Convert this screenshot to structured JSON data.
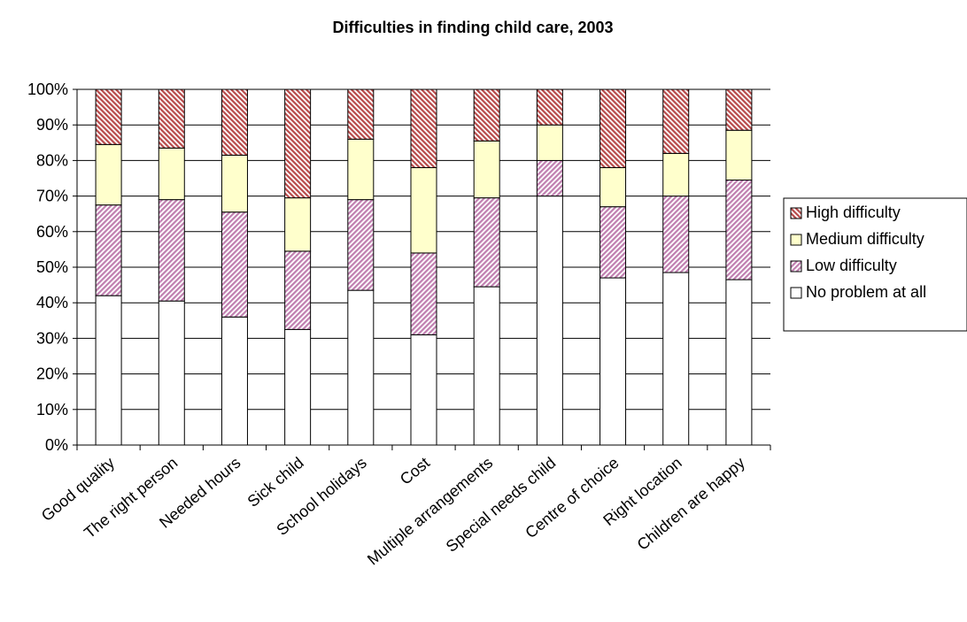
{
  "chart_data": {
    "type": "bar",
    "stacked": true,
    "percent": true,
    "title": "Difficulties in finding child care, 2003",
    "xlabel": "",
    "ylabel": "",
    "ylim": [
      0,
      100
    ],
    "yticks": [
      "0%",
      "10%",
      "20%",
      "30%",
      "40%",
      "50%",
      "60%",
      "70%",
      "80%",
      "90%",
      "100%"
    ],
    "grid": true,
    "legend_position": "right",
    "categories": [
      "Good quality",
      "The right person",
      "Needed hours",
      "Sick child",
      "School holidays",
      "Cost",
      "Multiple arrangements",
      "Special needs child",
      "Centre of choice",
      "Right location",
      "Children are happy"
    ],
    "series": [
      {
        "name": "No problem at all",
        "values": [
          42,
          40.5,
          36,
          32.5,
          43.5,
          31,
          44.5,
          70,
          47,
          48.5,
          46.5
        ],
        "color": "#ffffff"
      },
      {
        "name": "Low difficulty",
        "values": [
          25.5,
          28.5,
          29.5,
          22,
          25.5,
          23,
          25,
          10,
          20,
          21.5,
          28
        ],
        "color": "#cc99cc"
      },
      {
        "name": "Medium difficulty",
        "values": [
          17,
          14.5,
          16,
          15,
          17,
          24,
          16,
          10,
          11,
          12,
          14
        ],
        "color": "#ffffcc"
      },
      {
        "name": "High difficulty",
        "values": [
          15.5,
          16.5,
          18.5,
          30.5,
          14,
          22,
          14.5,
          10,
          22,
          18,
          11.5
        ],
        "color": "#cc6666"
      }
    ]
  }
}
